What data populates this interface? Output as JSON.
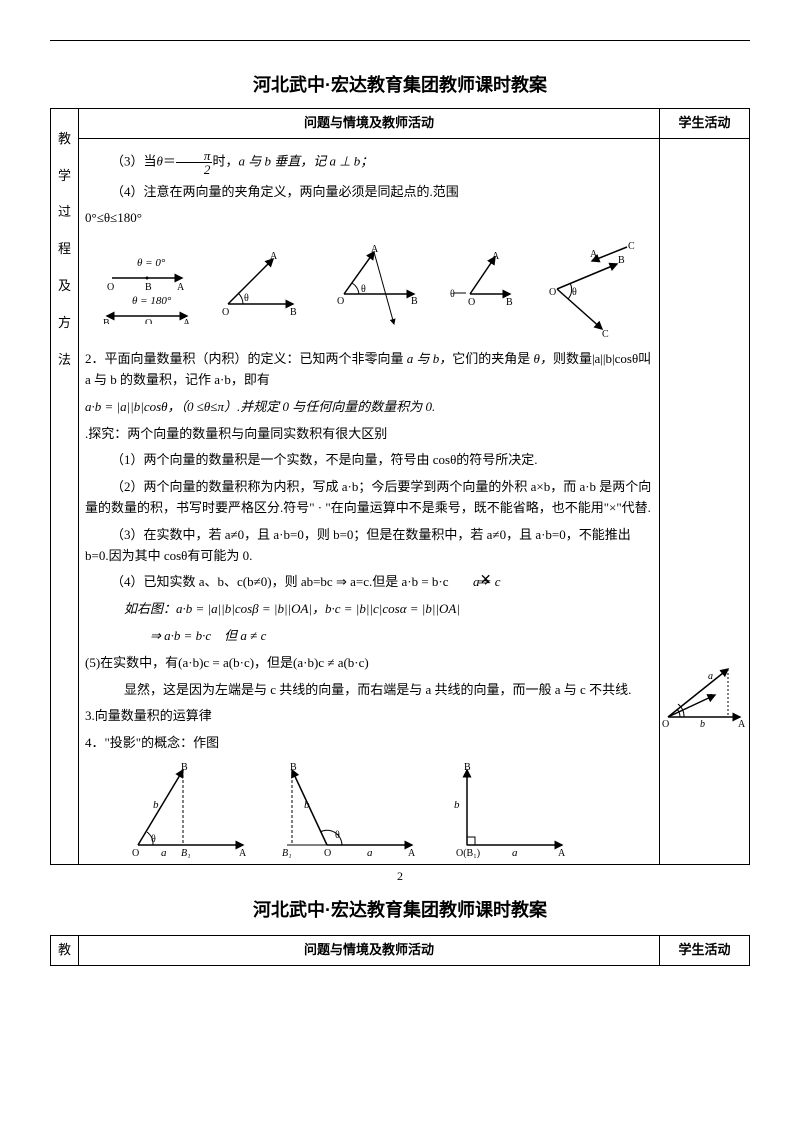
{
  "header_title": "河北武中·宏达教育集团教师课时教案",
  "col_activity_header": "问题与情境及教师活动",
  "col_student_header": "学生活动",
  "side_label_chars": [
    "教",
    "学",
    "过",
    "程",
    "及",
    "方",
    "法"
  ],
  "side_label2": "教",
  "page_number": "2",
  "body": {
    "p3": "（3）当",
    "p3_theta": "θ",
    "p3_eq": "＝",
    "p3_frac_num": "π",
    "p3_frac_den": "2",
    "p3_after": "时，",
    "p3_ab": "a 与 b 垂直，记 a ⊥ b；",
    "p4": "（4）注意在两向量的夹角定义，两向量必须是同起点的.范围",
    "p4_range": "0°≤θ≤180°",
    "sec2_lead": "2．平面向量数量积（内积）的定义：已知两个非零向量",
    "sec2_a": " a 与 b，",
    "sec2_b": "它们的夹角是",
    "sec2_theta": " θ，",
    "sec2_c": "则数量|a||b|cosθ叫 a 与 b 的数量积，记作 a·b，即有",
    "sec2_formula": "a·b = |a||b|cosθ，（0 ≤θ≤π）.并规定 0 与任何向量的数量积为 0.",
    "explore": ".探究：两个向量的数量积与向量同实数积有很大区别",
    "e1": "（1）两个向量的数量积是一个实数，不是向量，符号由 cosθ的符号所决定.",
    "e2": "（2）两个向量的数量积称为内积，写成 a·b；今后要学到两个向量的外积 a×b，而 a·b 是两个向量的数量的积，书写时要严格区分.符号\" · \"在向量运算中不是乘号，既不能省略，也不能用\"×\"代替.",
    "e3": "（3）在实数中，若 a≠0，且 a·b=0，则 b=0；但是在数量积中，若 a≠0，且 a·b=0，不能推出 b=0.因为其中 cosθ有可能为 0.",
    "e4": "（4）已知实数 a、b、c(b≠0)，则 ab=bc ⇒ a=c.但是 a·b = b·c",
    "e4_notimp": " a = c",
    "e4_fig": "如右图：a·b = |a||b|cosβ = |b||OA|，b·c = |b||c|cosα = |b||OA|",
    "e4_conc": "⇒ a·b = b·c　但 a ≠ c",
    "e5": "(5)在实数中，有(a·b)c = a(b·c)，但是(a·b)c ≠ a(b·c)",
    "e5_exp": "显然，这是因为左端是与 c 共线的向量，而右端是与 a 共线的向量，而一般 a 与 c 不共线.",
    "sec3": "3.向量数量积的运算律",
    "sec4": "4．\"投影\"的概念：作图",
    "diag_labels": {
      "theta0": "θ = 0°",
      "theta180": "θ = 180°",
      "O": "O",
      "A": "A",
      "B": "B",
      "C": "C",
      "a": "a",
      "b": "b",
      "c": "c",
      "B1": "B₁"
    }
  },
  "colors": {
    "text": "#000000",
    "line": "#000000",
    "bg": "#ffffff"
  }
}
